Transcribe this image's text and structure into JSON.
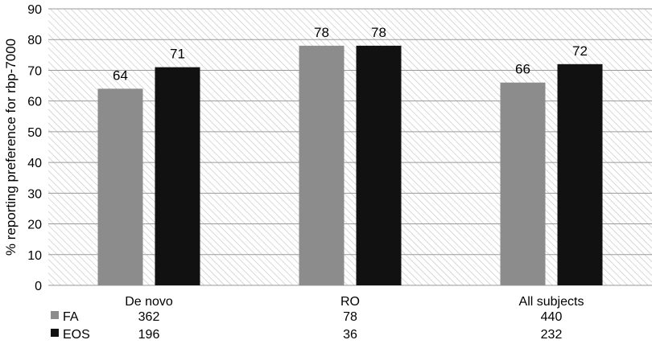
{
  "chart_data": {
    "type": "bar",
    "ylabel": "% reporting preference for rbp-7000",
    "ylim": [
      0,
      90
    ],
    "yticks": [
      0,
      10,
      20,
      30,
      40,
      50,
      60,
      70,
      80,
      90
    ],
    "grid": true,
    "categories": [
      "De novo",
      "RO",
      "All subjects"
    ],
    "series": [
      {
        "name": "FA",
        "color": "#8c8c8c",
        "values": [
          64,
          78,
          66
        ],
        "labels": [
          "64",
          "78",
          "66"
        ]
      },
      {
        "name": "EOS",
        "color": "#111111",
        "values": [
          71,
          78,
          72
        ],
        "labels": [
          "71",
          "78",
          "72"
        ]
      }
    ],
    "data_table": {
      "rows": [
        {
          "series": "FA",
          "values": [
            "362",
            "78",
            "440"
          ]
        },
        {
          "series": "EOS",
          "values": [
            "196",
            "36",
            "232"
          ]
        }
      ]
    }
  }
}
